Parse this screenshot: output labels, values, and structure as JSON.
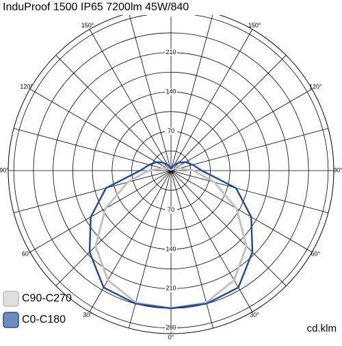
{
  "chart_data": {
    "type": "polar",
    "title": "InduProof 1500 IP65 7200lm 45W/840",
    "unit": "cd.klm",
    "rlim": [
      0,
      290
    ],
    "rticks": [
      70,
      140,
      210,
      280
    ],
    "rgrid": [
      35,
      70,
      105,
      140,
      175,
      210,
      245,
      280
    ],
    "angles": [
      -180,
      -165,
      -150,
      -135,
      -120,
      -105,
      -90,
      -75,
      -60,
      -45,
      -30,
      -15,
      0,
      15,
      30,
      45,
      60,
      75,
      90,
      105,
      120,
      135,
      150,
      165,
      180
    ],
    "angle_ticks": [
      {
        "value": -150,
        "label": "150°"
      },
      {
        "value": -120,
        "label": "120°"
      },
      {
        "value": -90,
        "label": "90°"
      },
      {
        "value": -60,
        "label": "60°"
      },
      {
        "value": -30,
        "label": "30°"
      },
      {
        "value": 0,
        "label": "0°"
      },
      {
        "value": 30,
        "label": "30°"
      },
      {
        "value": 60,
        "label": "60°"
      },
      {
        "value": 90,
        "label": "90°"
      },
      {
        "value": 120,
        "label": "120°"
      },
      {
        "value": 150,
        "label": "150°"
      }
    ],
    "series": [
      {
        "name": "C90-C270",
        "color": "#c0c0c0",
        "values": [
          0,
          1,
          2,
          4,
          8,
          15,
          40,
          80,
          135,
          190,
          225,
          243,
          245,
          243,
          225,
          190,
          135,
          80,
          40,
          15,
          8,
          4,
          2,
          1,
          0
        ]
      },
      {
        "name": "C0-C180",
        "color": "#1f4e9c",
        "values": [
          3,
          6,
          12,
          20,
          30,
          40,
          55,
          120,
          165,
          205,
          240,
          245,
          245,
          245,
          240,
          205,
          165,
          120,
          55,
          40,
          30,
          20,
          12,
          6,
          3
        ]
      }
    ]
  }
}
